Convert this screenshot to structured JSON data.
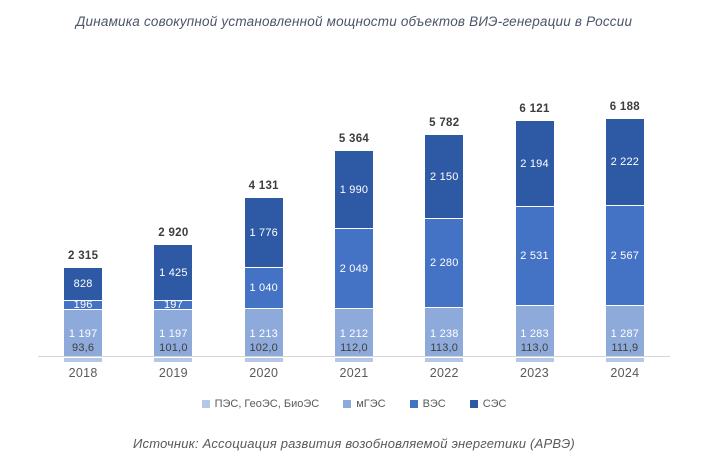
{
  "title": "Динамика совокупной установленной мощности объектов ВИЭ-генерации в России",
  "source": "Источник: Ассоциация развития возобновляемой энергетики (АРВЭ)",
  "colors": {
    "pes": "#b4c7e7",
    "mges": "#8eaadb",
    "ves": "#4472c4",
    "ses": "#2e5aa5",
    "axis": "#d6d6d6"
  },
  "chart_data": {
    "type": "bar",
    "stacked": true,
    "title": "Динамика совокупной установленной мощности объектов ВИЭ-генерации в России",
    "categories": [
      "2018",
      "2019",
      "2020",
      "2021",
      "2022",
      "2023",
      "2024"
    ],
    "totals": [
      "2 315",
      "2 920",
      "4 131",
      "5 364",
      "5 782",
      "6 121",
      "6 188"
    ],
    "series": [
      {
        "key": "pes",
        "name": "ПЭС, ГеоЭС, БиоЭС",
        "color": "#b4c7e7",
        "values": [
          93.6,
          101.0,
          102.0,
          112.0,
          113.0,
          113.0,
          111.9
        ],
        "labels": [
          "93,6",
          "101,0",
          "102,0",
          "112,0",
          "113,0",
          "113,0",
          "111,9"
        ]
      },
      {
        "key": "mges",
        "name": "мГЭС",
        "color": "#8eaadb",
        "values": [
          1197,
          1197,
          1213,
          1212,
          1238,
          1283,
          1287
        ],
        "labels": [
          "1 197",
          "1 197",
          "1 213",
          "1 212",
          "1 238",
          "1 283",
          "1 287"
        ]
      },
      {
        "key": "ves",
        "name": "ВЭС",
        "color": "#4472c4",
        "values": [
          196,
          197,
          1040,
          2049,
          2280,
          2531,
          2567
        ],
        "labels": [
          "196",
          "197",
          "1 040",
          "2 049",
          "2 280",
          "2 531",
          "2 567"
        ]
      },
      {
        "key": "ses",
        "name": "СЭС",
        "color": "#2e5aa5",
        "values": [
          828,
          1425,
          1776,
          1990,
          2150,
          2194,
          2222
        ],
        "labels": [
          "828",
          "1 425",
          "1 776",
          "1 990",
          "2 150",
          "2 194",
          "2 222"
        ]
      }
    ],
    "legend_position": "bottom",
    "grid": false,
    "y_axis_visible": false
  }
}
